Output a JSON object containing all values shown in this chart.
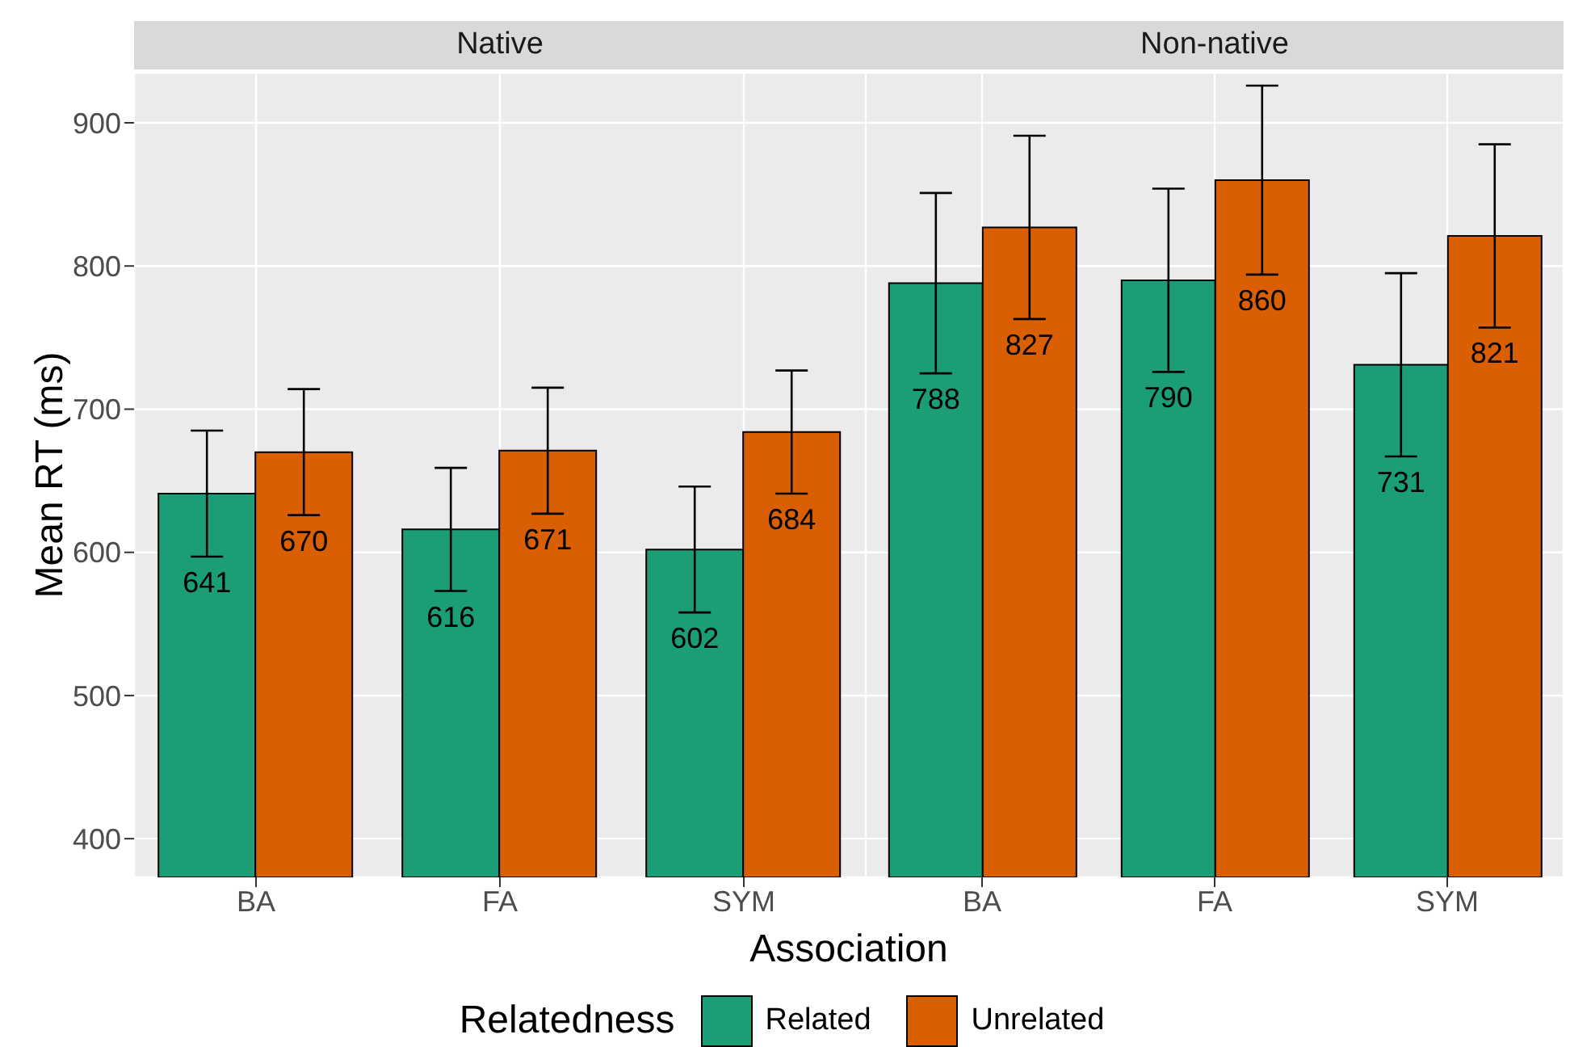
{
  "chart_data": [
    {
      "type": "bar",
      "title": "Native",
      "xlabel": "Association",
      "ylabel": "Mean RT (ms)",
      "legend_title": "Relatedness",
      "legend": "bottom",
      "categories": [
        "BA",
        "FA",
        "SYM"
      ],
      "series": [
        {
          "name": "Related",
          "color": "#1b9e77",
          "values": [
            641,
            616,
            602
          ],
          "errors": [
            44,
            43,
            44
          ]
        },
        {
          "name": "Unrelated",
          "color": "#d95f02",
          "values": [
            670,
            671,
            684
          ],
          "errors": [
            44,
            44,
            43
          ]
        }
      ],
      "ylim": [
        373,
        935
      ],
      "yticks": [
        400,
        500,
        600,
        700,
        800,
        900
      ],
      "grid": true,
      "data_labels": true
    },
    {
      "type": "bar",
      "title": "Non-native",
      "categories": [
        "BA",
        "FA",
        "SYM"
      ],
      "series": [
        {
          "color": "#1b9e77",
          "values": [
            788,
            790,
            731
          ],
          "errors": [
            63,
            64,
            64
          ]
        },
        {
          "color": "#d95f02",
          "values": [
            827,
            860,
            821
          ],
          "errors": [
            64,
            66,
            64
          ]
        }
      ],
      "ylim": [
        373,
        935
      ],
      "yticks": [
        400,
        500,
        600,
        700,
        800,
        900
      ],
      "grid": true,
      "data_labels": true,
      "tick_labels": "x"
    }
  ]
}
